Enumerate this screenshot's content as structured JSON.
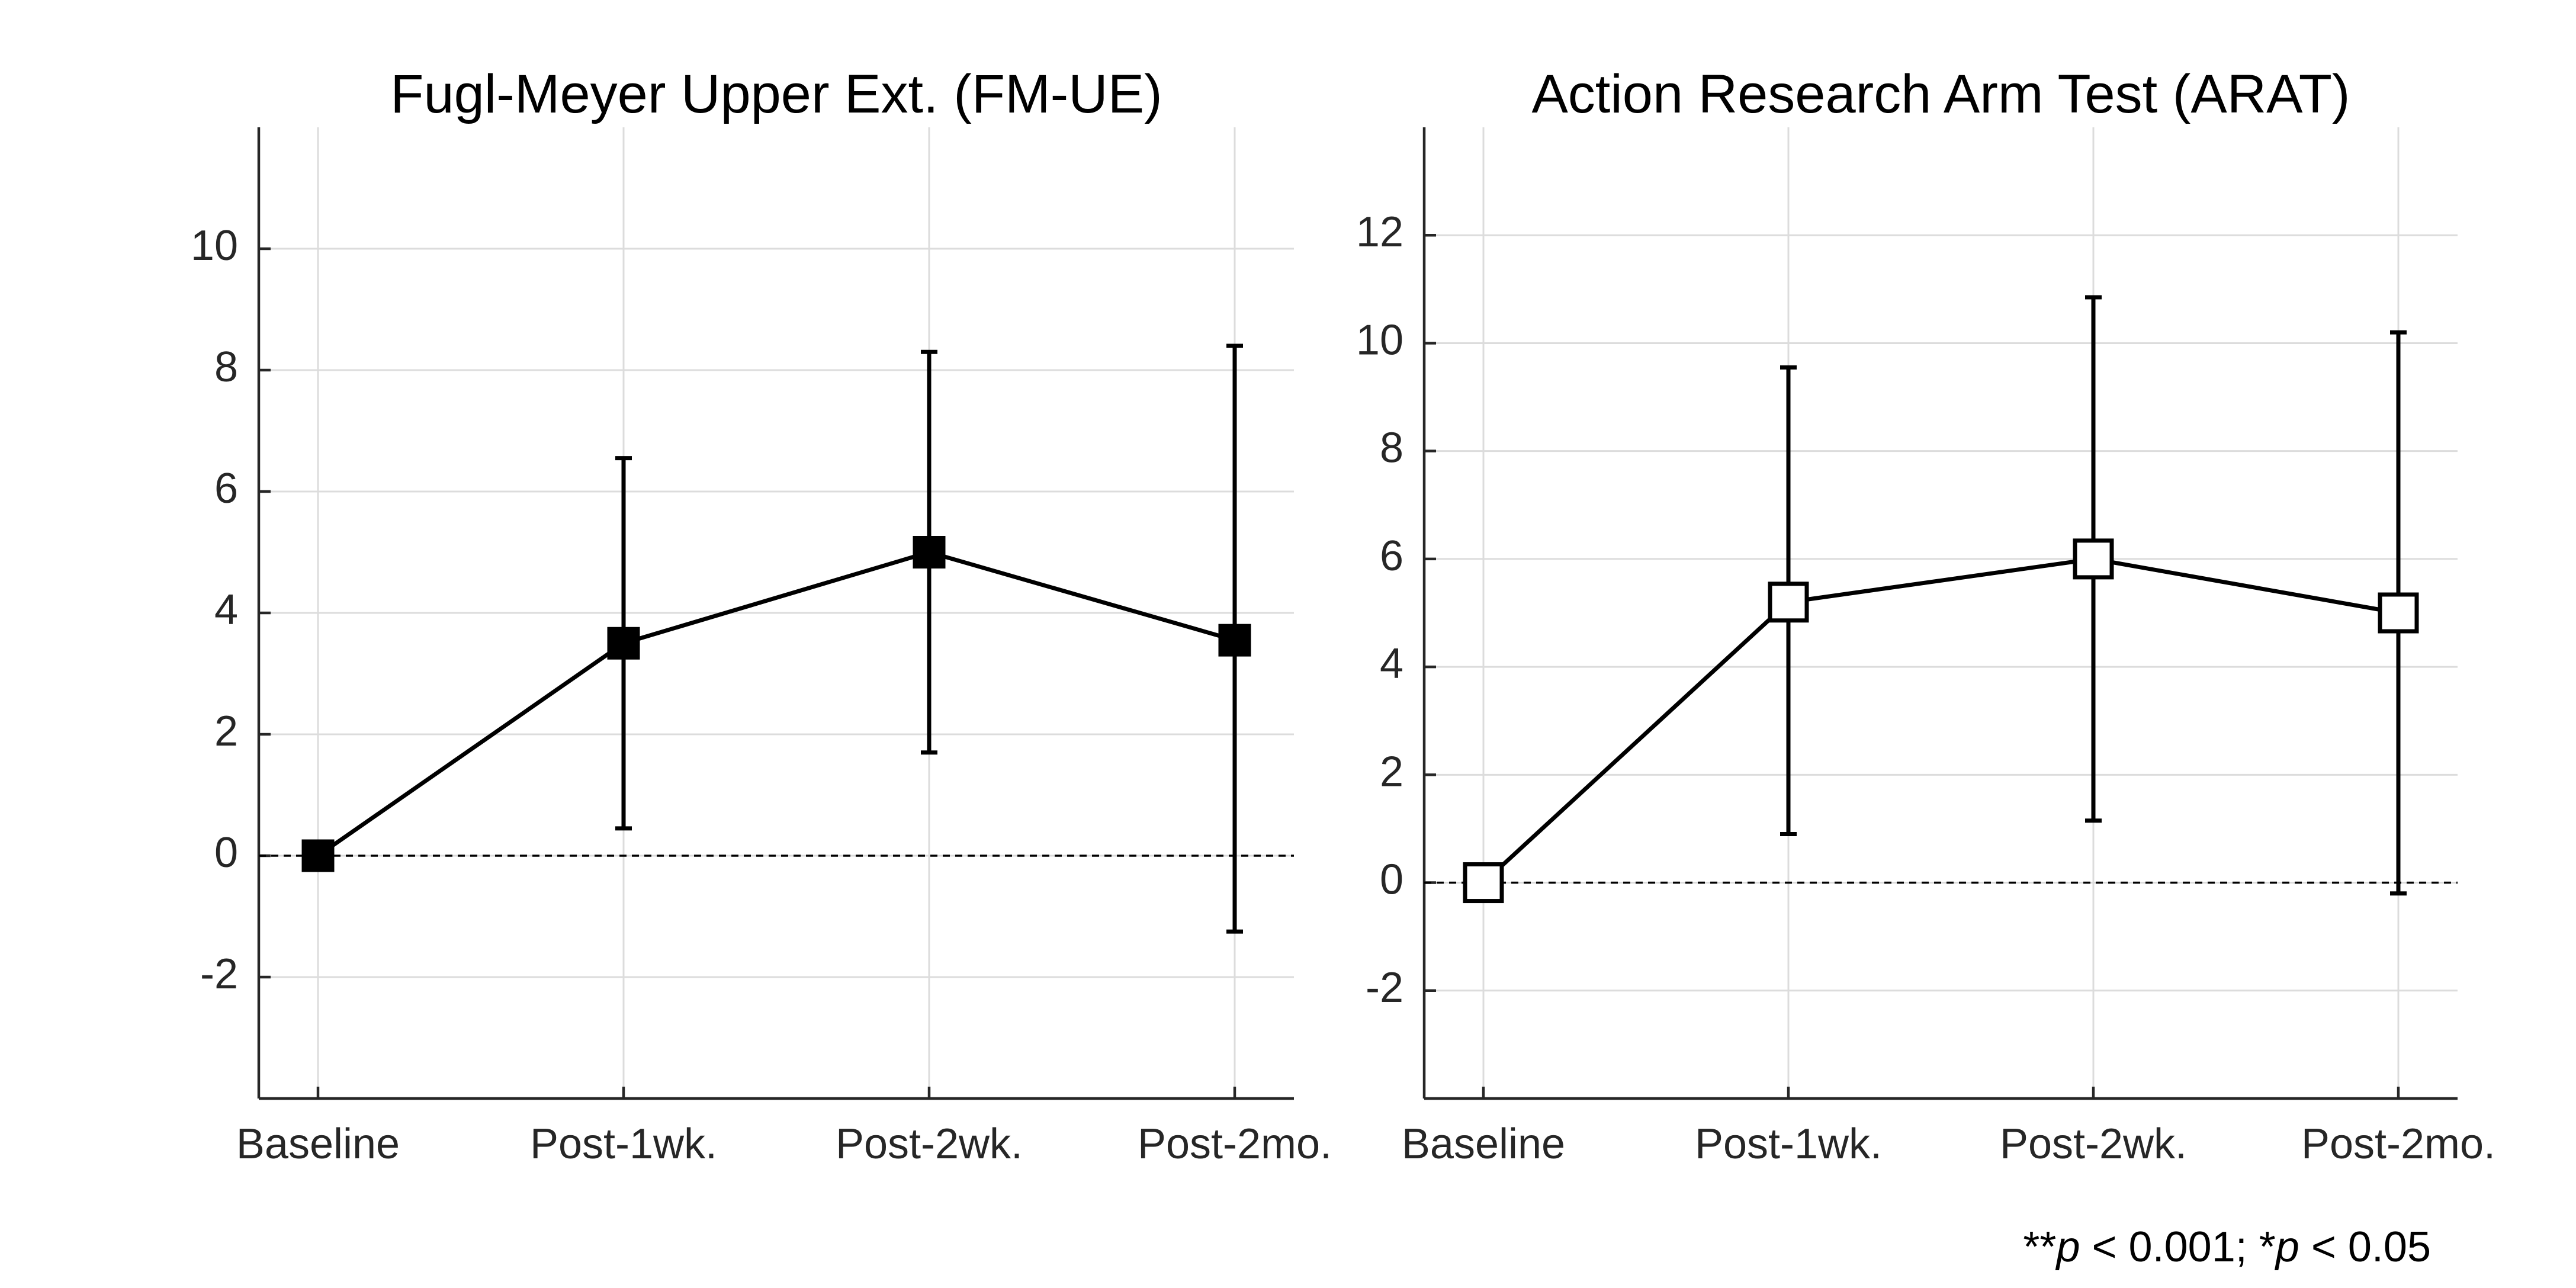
{
  "footnote": {
    "a": "**",
    "b": "p",
    "c": " < 0.001; *",
    "d": "p",
    "e": " < 0.05"
  },
  "chart_data": [
    {
      "type": "line",
      "title": "Fugl-Meyer Upper Ext. (FM-UE)",
      "categories": [
        "Baseline",
        "Post-1wk.",
        "Post-2wk.",
        "Post-2mo."
      ],
      "values": [
        0,
        3.5,
        5.0,
        3.55
      ],
      "err_low": [
        0,
        0.45,
        1.7,
        -1.25
      ],
      "err_high": [
        0,
        6.55,
        8.3,
        8.4
      ],
      "ylim": [
        -4,
        12
      ],
      "yticks": [
        -2,
        0,
        2,
        4,
        6,
        8,
        10
      ],
      "marker": "square",
      "marker_fill": "#000000",
      "grid": true,
      "reference_line": 0
    },
    {
      "type": "line",
      "title": "Action Research Arm Test (ARAT)",
      "categories": [
        "Baseline",
        "Post-1wk.",
        "Post-2wk.",
        "Post-2mo."
      ],
      "values": [
        0,
        5.2,
        6.0,
        5.0
      ],
      "err_low": [
        0,
        0.9,
        1.15,
        -0.2
      ],
      "err_high": [
        0,
        9.55,
        10.85,
        10.2
      ],
      "ylim": [
        -4,
        14
      ],
      "yticks": [
        -2,
        0,
        2,
        4,
        6,
        8,
        10,
        12
      ],
      "marker": "square",
      "marker_fill": "#ffffff",
      "grid": true,
      "reference_line": 0
    }
  ]
}
